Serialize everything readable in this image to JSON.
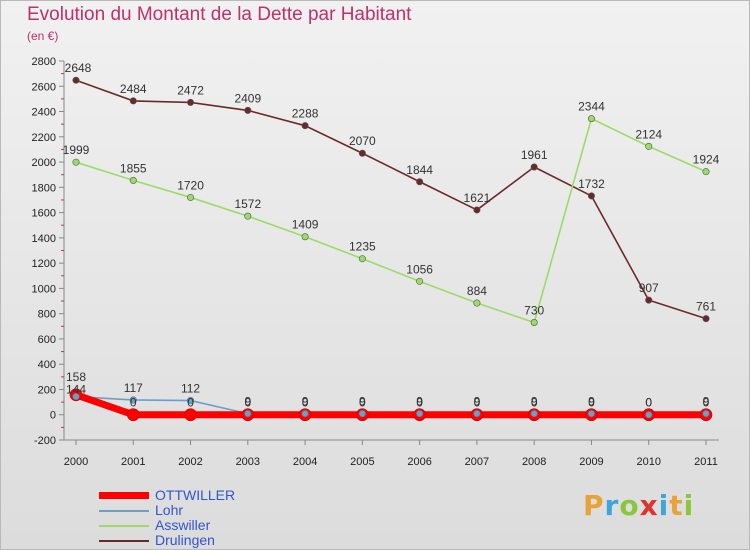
{
  "header": {
    "title": "Evolution du Montant de la Dette par Habitant",
    "subtitle": "(en €)"
  },
  "logo": {
    "text": "Proxiti",
    "colors": [
      "#e8a23a",
      "#3ba5dc",
      "#8cc63f",
      "#e0332b",
      "#3ba5dc",
      "#e8a23a",
      "#8cc63f"
    ]
  },
  "chart_data": {
    "type": "line",
    "title": "Evolution du Montant de la Dette par Habitant",
    "subtitle": "(en €)",
    "x": [
      2000,
      2001,
      2002,
      2003,
      2004,
      2005,
      2006,
      2007,
      2008,
      2009,
      2010,
      2011
    ],
    "ylim": [
      -200,
      2800
    ],
    "yticks": [
      -200,
      0,
      200,
      400,
      600,
      800,
      1000,
      1200,
      1400,
      1600,
      1800,
      2000,
      2200,
      2400,
      2600,
      2800
    ],
    "grid": false,
    "legend_position": "bottom-left",
    "series": [
      {
        "name": "OTTWILLER",
        "color": "#ff0000",
        "values": [
          158,
          0,
          0,
          0,
          0,
          0,
          0,
          0,
          0,
          0,
          0,
          0
        ]
      },
      {
        "name": "Lohr",
        "color": "#6aa0c8",
        "values": [
          144,
          117,
          112,
          9,
          9,
          9,
          9,
          9,
          9,
          9,
          0,
          9
        ]
      },
      {
        "name": "Asswiller",
        "color": "#99dd66",
        "values": [
          1999,
          1855,
          1720,
          1572,
          1409,
          1235,
          1056,
          884,
          730,
          2344,
          2124,
          1924
        ]
      },
      {
        "name": "Drulingen",
        "color": "#6b2a2a",
        "values": [
          2648,
          2484,
          2472,
          2409,
          2288,
          2070,
          1844,
          1621,
          1961,
          1732,
          907,
          761
        ]
      }
    ]
  }
}
